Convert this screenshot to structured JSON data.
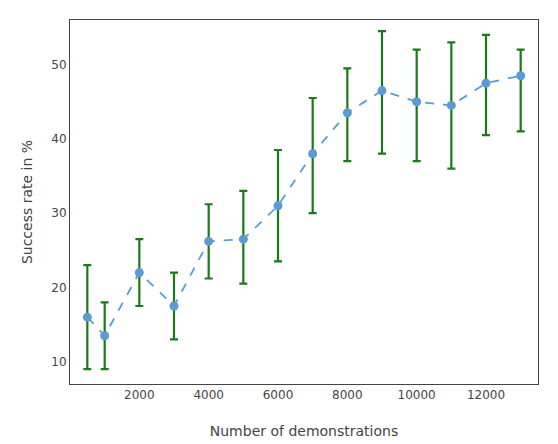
{
  "chart_data": {
    "type": "scatter",
    "x": [
      500,
      1000,
      2000,
      3000,
      4000,
      5000,
      6000,
      7000,
      8000,
      9000,
      10000,
      11000,
      12000,
      13000
    ],
    "values": [
      16.0,
      13.5,
      22.0,
      17.5,
      26.2,
      26.5,
      31.0,
      38.0,
      43.5,
      46.5,
      45.0,
      44.5,
      47.5,
      48.5
    ],
    "errors": {
      "lower": [
        7.0,
        4.5,
        4.5,
        4.5,
        5.0,
        6.0,
        7.5,
        8.0,
        6.5,
        8.5,
        8.0,
        8.5,
        7.0,
        7.5
      ],
      "upper": [
        7.0,
        4.5,
        4.5,
        4.5,
        5.0,
        6.5,
        7.5,
        7.5,
        6.0,
        8.0,
        7.0,
        8.5,
        6.5,
        3.5
      ],
      "color": "#1a7a1a"
    },
    "color": "#5b9bd5",
    "marker": "circle",
    "line_style": "dashed",
    "xlabel": "Number of demonstrations",
    "ylabel": "Success rate in %",
    "xlim": [
      0,
      13500
    ],
    "ylim": [
      7,
      56
    ],
    "xticks": [
      2000,
      4000,
      6000,
      8000,
      10000,
      12000
    ],
    "yticks": [
      10,
      20,
      30,
      40,
      50
    ],
    "grid": false
  }
}
